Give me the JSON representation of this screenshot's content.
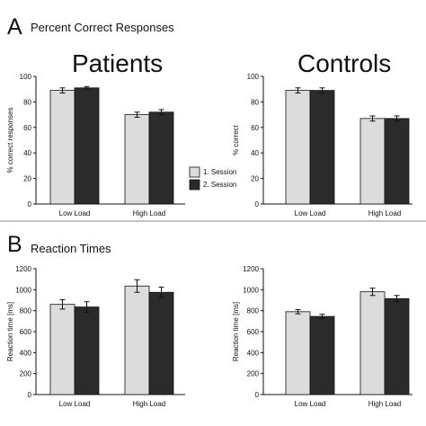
{
  "figure": {
    "panel_a_letter": "A",
    "panel_a_title": "Percent Correct Responses",
    "panel_b_letter": "B",
    "panel_b_title": "Reaction Times",
    "patients_label": "Patients",
    "controls_label": "Controls",
    "legend": [
      {
        "label": "1. Session",
        "color": "#dcdcdc"
      },
      {
        "label": "2. Session",
        "color": "#2b2b2b"
      }
    ]
  },
  "chart_data": [
    {
      "type": "bar",
      "group": "Patients",
      "panel": "A",
      "categories": [
        "Low Load",
        "High Load"
      ],
      "series": [
        {
          "name": "1. Session",
          "color": "#dcdcdc",
          "values": [
            89,
            70
          ],
          "errors": [
            2,
            2
          ]
        },
        {
          "name": "2. Session",
          "color": "#2b2b2b",
          "values": [
            91,
            72
          ],
          "errors": [
            1,
            2
          ]
        }
      ],
      "ylim": [
        0,
        100
      ],
      "yticks": [
        0,
        20,
        40,
        60,
        80,
        100
      ],
      "ylabel": "% correct responses"
    },
    {
      "type": "bar",
      "group": "Controls",
      "panel": "A",
      "categories": [
        "Low Load",
        "High Load"
      ],
      "series": [
        {
          "name": "1. Session",
          "color": "#dcdcdc",
          "values": [
            89,
            67
          ],
          "errors": [
            2,
            2
          ]
        },
        {
          "name": "2. Session",
          "color": "#2b2b2b",
          "values": [
            89,
            67
          ],
          "errors": [
            2,
            2
          ]
        }
      ],
      "ylim": [
        0,
        100
      ],
      "yticks": [
        0,
        20,
        40,
        60,
        80,
        100
      ],
      "ylabel": "% correct"
    },
    {
      "type": "bar",
      "group": "Patients",
      "panel": "B",
      "categories": [
        "Low Load",
        "High Load"
      ],
      "series": [
        {
          "name": "1. Session",
          "color": "#dcdcdc",
          "values": [
            860,
            1035
          ],
          "errors": [
            45,
            60
          ]
        },
        {
          "name": "2. Session",
          "color": "#2b2b2b",
          "values": [
            835,
            975
          ],
          "errors": [
            50,
            50
          ]
        }
      ],
      "ylim": [
        0,
        1200
      ],
      "yticks": [
        0,
        200,
        400,
        600,
        800,
        1000,
        1200
      ],
      "ylabel": "Reaction time [ms]"
    },
    {
      "type": "bar",
      "group": "Controls",
      "panel": "B",
      "categories": [
        "Low Load",
        "High Load"
      ],
      "series": [
        {
          "name": "1. Session",
          "color": "#dcdcdc",
          "values": [
            790,
            980
          ],
          "errors": [
            20,
            35
          ]
        },
        {
          "name": "2. Session",
          "color": "#2b2b2b",
          "values": [
            745,
            915
          ],
          "errors": [
            20,
            30
          ]
        }
      ],
      "ylim": [
        0,
        1200
      ],
      "yticks": [
        0,
        200,
        400,
        600,
        800,
        1000,
        1200
      ],
      "ylabel": "Reaction time [ms]"
    }
  ]
}
